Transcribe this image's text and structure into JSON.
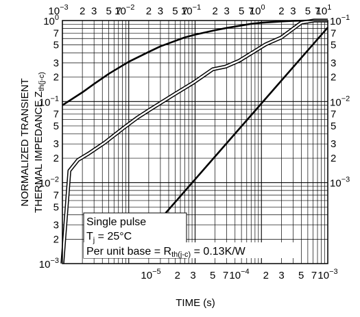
{
  "chart_data": {
    "type": "line",
    "xlabel": "TIME (s)",
    "ylabel": {
      "line1": "NORMALIZED TRANSIENT",
      "line2": "THERMAL IMPEDANCE  Z",
      "subscript": "th(j-c)"
    },
    "x_scale": "log",
    "y_scale": "log",
    "grid": true,
    "top_axis": {
      "xlim": [
        0.001,
        10
      ],
      "decade_labels": [
        {
          "mantissa": "10",
          "exp": "−3"
        },
        {
          "mantissa": "10",
          "exp": "−2"
        },
        {
          "mantissa": "10",
          "exp": "−1"
        },
        {
          "mantissa": "10",
          "exp": "0"
        },
        {
          "mantissa": "10",
          "exp": "1"
        }
      ],
      "minor_labels": [
        "2",
        "3",
        "5",
        "7"
      ]
    },
    "bottom_axis": {
      "xlim": [
        1e-06,
        0.001
      ],
      "decade_labels": [
        {
          "mantissa": "10",
          "exp": "−5"
        },
        {
          "mantissa": "10",
          "exp": "−4"
        },
        {
          "mantissa": "10",
          "exp": "−3"
        }
      ],
      "minor_labels": [
        "2",
        "3",
        "5",
        "7"
      ]
    },
    "left_axis": {
      "ylim": [
        0.001,
        1
      ],
      "decade_labels": [
        {
          "mantissa": "10",
          "exp": "0"
        },
        {
          "mantissa": "10",
          "exp": "−1"
        },
        {
          "mantissa": "10",
          "exp": "−2"
        },
        {
          "mantissa": "10",
          "exp": "−3"
        }
      ],
      "minor_labels": [
        "7",
        "5",
        "3",
        "2"
      ]
    },
    "right_axis": {
      "ylim": [
        0.0001,
        0.1
      ],
      "decade_labels": [
        {
          "mantissa": "10",
          "exp": "−1"
        },
        {
          "mantissa": "10",
          "exp": "−2"
        },
        {
          "mantissa": "10",
          "exp": "−3"
        }
      ],
      "minor_labels": [
        "7",
        "5",
        "3",
        "2"
      ]
    },
    "series": [
      {
        "axes": "left-top",
        "style": "solid",
        "x": [
          0.001,
          0.002,
          0.003,
          0.005,
          0.007,
          0.01,
          0.02,
          0.03,
          0.05,
          0.07,
          0.1,
          0.2,
          0.3,
          0.5,
          0.7,
          1,
          2,
          3,
          5,
          7,
          10
        ],
        "y": [
          0.09,
          0.13,
          0.165,
          0.22,
          0.26,
          0.31,
          0.41,
          0.48,
          0.56,
          0.62,
          0.67,
          0.76,
          0.81,
          0.87,
          0.91,
          0.94,
          0.975,
          0.99,
          1.0,
          1.0,
          1.0
        ]
      },
      {
        "axes": "right-bottom",
        "style": "double",
        "x": [
          1e-06,
          1.2e-06,
          1.5e-06,
          2e-06,
          3e-06,
          5e-06,
          7e-06,
          1e-05,
          2e-05,
          3e-05,
          5e-05,
          7e-05,
          0.0001,
          0.0002,
          0.0003,
          0.0005,
          0.0007,
          0.001
        ],
        "y": [
          0.0001,
          0.0014,
          0.0019,
          0.0023,
          0.0031,
          0.0048,
          0.0063,
          0.0081,
          0.013,
          0.017,
          0.025,
          0.027,
          0.032,
          0.051,
          0.062,
          0.094,
          0.108,
          0.145
        ]
      },
      {
        "axes": "right-bottom",
        "style": "solid",
        "x": [
          1e-05,
          0.001
        ],
        "y": [
          0.00026,
          0.082
        ]
      }
    ]
  },
  "annotation": {
    "line1": "Single pulse",
    "line2_main": "T",
    "line2_sub": "j",
    "line2_rest": " = 25°C",
    "line3_main": "Per unit base = R",
    "line3_sub": "th(j-c)",
    "line3_rest": " = 0.13K/W"
  }
}
